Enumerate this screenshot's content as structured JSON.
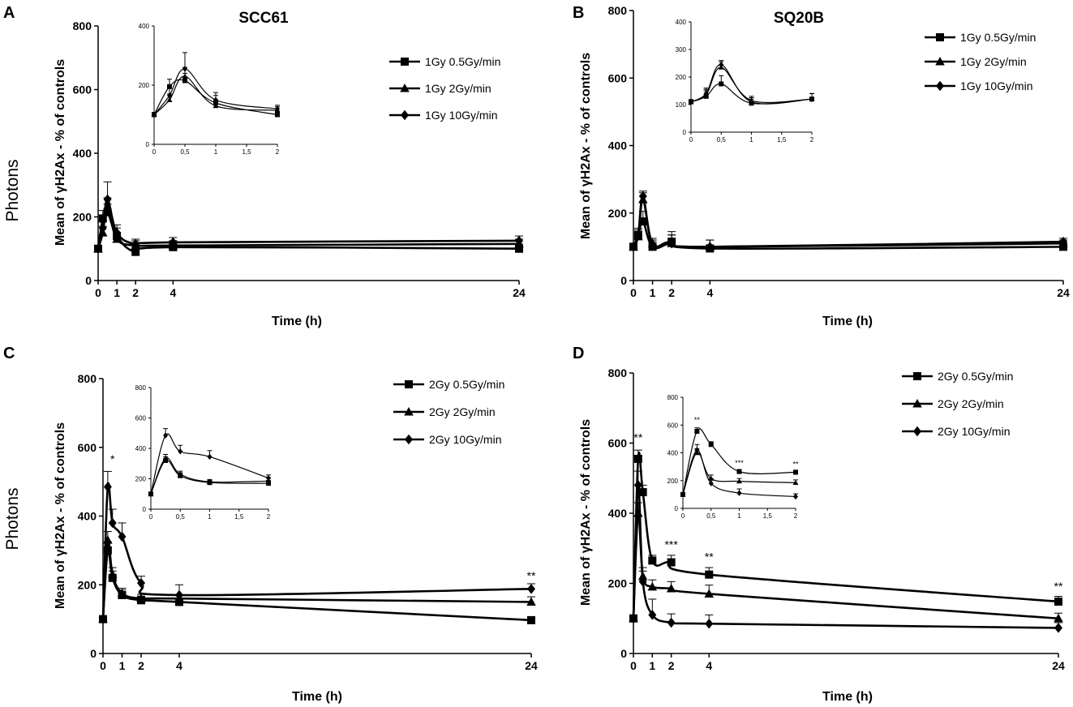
{
  "chart_data": [
    {
      "id": "A",
      "panel_label": "A",
      "type": "line",
      "title": "SCC61",
      "side_label": "Photons",
      "xlabel": "Time (h)",
      "ylabel": "Mean of γH2Ax - % of controls",
      "ylim": [
        0,
        800
      ],
      "yticks": [
        0,
        200,
        400,
        600,
        800
      ],
      "xticks": [
        0,
        1,
        2,
        4,
        24
      ],
      "legend_position": "top-right",
      "annotations": [],
      "series": [
        {
          "name": "1Gy 0.5Gy/min",
          "marker": "square",
          "x": [
            0,
            0.25,
            0.5,
            1,
            2,
            4,
            24
          ],
          "y": [
            100,
            195,
            215,
            140,
            90,
            105,
            100
          ],
          "err": [
            10,
            25,
            25,
            25,
            15,
            20,
            15
          ]
        },
        {
          "name": "1Gy 2Gy/min",
          "marker": "triangle",
          "x": [
            0,
            0.25,
            0.5,
            1,
            2,
            4,
            24
          ],
          "y": [
            100,
            150,
            230,
            130,
            110,
            110,
            115
          ],
          "err": [
            10,
            20,
            30,
            20,
            15,
            15,
            15
          ]
        },
        {
          "name": "1Gy 10Gy/min",
          "marker": "diamond",
          "x": [
            0,
            0.25,
            0.5,
            1,
            2,
            4,
            24
          ],
          "y": [
            100,
            165,
            255,
            150,
            115,
            120,
            125
          ],
          "err": [
            10,
            25,
            55,
            25,
            15,
            15,
            15
          ]
        }
      ],
      "inset": {
        "xlim": [
          0,
          2
        ],
        "ylim": [
          0,
          400
        ],
        "xticks": [
          0,
          0.5,
          1,
          1.5,
          2
        ],
        "xticklabels": [
          "0",
          "0,5",
          "1",
          "1,5",
          "2"
        ],
        "yticks": [
          0,
          200,
          400
        ],
        "annotations": [],
        "series": [
          {
            "name": "1Gy 0.5Gy/min",
            "marker": "square",
            "x": [
              0,
              0.25,
              0.5,
              1,
              2
            ],
            "y": [
              100,
              195,
              215,
              140,
              100
            ],
            "err": [
              8,
              25,
              25,
              25,
              12
            ]
          },
          {
            "name": "1Gy 2Gy/min",
            "marker": "triangle",
            "x": [
              0,
              0.25,
              0.5,
              1,
              2
            ],
            "y": [
              100,
              150,
              230,
              130,
              115
            ],
            "err": [
              8,
              20,
              30,
              20,
              12
            ]
          },
          {
            "name": "1Gy 10Gy/min",
            "marker": "diamond",
            "x": [
              0,
              0.25,
              0.5,
              1,
              2
            ],
            "y": [
              100,
              165,
              255,
              150,
              120
            ],
            "err": [
              8,
              25,
              55,
              25,
              12
            ]
          }
        ]
      }
    },
    {
      "id": "B",
      "panel_label": "B",
      "type": "line",
      "title": "SQ20B",
      "xlabel": "Time (h)",
      "ylabel": "Mean of γH2Ax - % of controls",
      "ylim": [
        0,
        800
      ],
      "yticks": [
        0,
        200,
        400,
        600,
        800
      ],
      "xticks": [
        0,
        1,
        2,
        4,
        24
      ],
      "legend_position": "top-right",
      "annotations": [],
      "series": [
        {
          "name": "1Gy 0.5Gy/min",
          "marker": "square",
          "x": [
            0,
            0.25,
            0.5,
            1,
            2,
            4,
            24
          ],
          "y": [
            100,
            135,
            175,
            100,
            115,
            95,
            100
          ],
          "err": [
            8,
            20,
            30,
            15,
            30,
            25,
            10
          ]
        },
        {
          "name": "1Gy 2Gy/min",
          "marker": "triangle",
          "x": [
            0,
            0.25,
            0.5,
            1,
            2,
            4,
            24
          ],
          "y": [
            100,
            130,
            240,
            110,
            110,
            100,
            110
          ],
          "err": [
            8,
            20,
            20,
            15,
            25,
            20,
            10
          ]
        },
        {
          "name": "1Gy 10Gy/min",
          "marker": "diamond",
          "x": [
            0,
            0.25,
            0.5,
            1,
            2,
            4,
            24
          ],
          "y": [
            100,
            135,
            250,
            105,
            110,
            100,
            115
          ],
          "err": [
            8,
            20,
            15,
            15,
            25,
            20,
            10
          ]
        }
      ],
      "inset": {
        "xlim": [
          0,
          2
        ],
        "ylim": [
          0,
          400
        ],
        "xticks": [
          0,
          0.5,
          1,
          1.5,
          2
        ],
        "xticklabels": [
          "0",
          "0,5",
          "1",
          "1,5",
          "2"
        ],
        "yticks": [
          0,
          100,
          200,
          300,
          400
        ],
        "annotations": [],
        "series": [
          {
            "name": "1Gy 0.5Gy/min",
            "marker": "square",
            "x": [
              0,
              0.25,
              0.5,
              1,
              2
            ],
            "y": [
              110,
              130,
              175,
              105,
              120
            ],
            "err": [
              8,
              20,
              30,
              15,
              20
            ]
          },
          {
            "name": "1Gy 2Gy/min",
            "marker": "triangle",
            "x": [
              0,
              0.25,
              0.5,
              1,
              2
            ],
            "y": [
              110,
              135,
              235,
              115,
              120
            ],
            "err": [
              8,
              20,
              20,
              15,
              20
            ]
          },
          {
            "name": "1Gy 10Gy/min",
            "marker": "diamond",
            "x": [
              0,
              0.25,
              0.5,
              1,
              2
            ],
            "y": [
              110,
              140,
              245,
              110,
              120
            ],
            "err": [
              8,
              20,
              15,
              15,
              20
            ]
          }
        ]
      }
    },
    {
      "id": "C",
      "panel_label": "C",
      "type": "line",
      "title": "",
      "side_label": "Photons",
      "xlabel": "Time (h)",
      "ylabel": "Mean of γH2Ax - % of controls",
      "ylim": [
        0,
        800
      ],
      "yticks": [
        0,
        200,
        400,
        600,
        800
      ],
      "xticks": [
        0,
        1,
        2,
        4,
        24
      ],
      "legend_position": "top-right",
      "annotations": [
        {
          "text": "*",
          "x": 0.5,
          "y": 555
        },
        {
          "text": "**",
          "x": 24,
          "y": 215
        }
      ],
      "series": [
        {
          "name": "2Gy 0.5Gy/min",
          "marker": "square",
          "x": [
            0,
            0.25,
            0.5,
            1,
            2,
            4,
            24
          ],
          "y": [
            100,
            300,
            220,
            170,
            155,
            150,
            97
          ],
          "err": [
            0,
            25,
            20,
            15,
            12,
            10,
            8
          ]
        },
        {
          "name": "2Gy 2Gy/min",
          "marker": "triangle",
          "x": [
            0,
            0.25,
            0.5,
            1,
            2,
            4,
            24
          ],
          "y": [
            100,
            330,
            230,
            175,
            160,
            160,
            150
          ],
          "err": [
            0,
            25,
            20,
            15,
            12,
            10,
            15
          ]
        },
        {
          "name": "2Gy 10Gy/min",
          "marker": "diamond",
          "x": [
            0,
            0.25,
            0.5,
            1,
            2,
            4,
            24
          ],
          "y": [
            100,
            485,
            380,
            340,
            205,
            170,
            188
          ],
          "err": [
            0,
            45,
            40,
            40,
            20,
            30,
            15
          ]
        }
      ],
      "inset": {
        "xlim": [
          0,
          2
        ],
        "ylim": [
          0,
          800
        ],
        "xticks": [
          0,
          0.5,
          1,
          1.5,
          2
        ],
        "xticklabels": [
          "0",
          "0,5",
          "1",
          "1,5",
          "2"
        ],
        "yticks": [
          0,
          200,
          400,
          600,
          800
        ],
        "annotations": [],
        "series": [
          {
            "name": "2Gy 0.5Gy/min",
            "marker": "square",
            "x": [
              0,
              0.25,
              0.5,
              1,
              2
            ],
            "y": [
              100,
              320,
              220,
              175,
              170
            ],
            "err": [
              0,
              25,
              20,
              15,
              20
            ]
          },
          {
            "name": "2Gy 2Gy/min",
            "marker": "triangle",
            "x": [
              0,
              0.25,
              0.5,
              1,
              2
            ],
            "y": [
              100,
              335,
              230,
              180,
              185
            ],
            "err": [
              0,
              25,
              20,
              15,
              20
            ]
          },
          {
            "name": "2Gy 10Gy/min",
            "marker": "diamond",
            "x": [
              0,
              0.25,
              0.5,
              1,
              2
            ],
            "y": [
              100,
              485,
              380,
              345,
              205
            ],
            "err": [
              0,
              45,
              40,
              40,
              20
            ]
          }
        ]
      }
    },
    {
      "id": "D",
      "panel_label": "D",
      "type": "line",
      "title": "",
      "xlabel": "Time (h)",
      "ylabel": "Mean of γH2Ax - % of controls",
      "ylim": [
        0,
        800
      ],
      "yticks": [
        0,
        200,
        400,
        600,
        800
      ],
      "xticks": [
        0,
        1,
        2,
        4,
        24
      ],
      "legend_position": "top-right",
      "annotations": [
        {
          "text": "**",
          "x": 0.25,
          "y": 605
        },
        {
          "text": "***",
          "x": 2,
          "y": 300
        },
        {
          "text": "**",
          "x": 4,
          "y": 265
        },
        {
          "text": "**",
          "x": 24,
          "y": 180
        }
      ],
      "series": [
        {
          "name": "2Gy 0.5Gy/min",
          "marker": "square",
          "x": [
            0,
            0.25,
            0.5,
            1,
            2,
            4,
            24
          ],
          "y": [
            100,
            555,
            460,
            265,
            260,
            225,
            148
          ],
          "err": [
            0,
            25,
            20,
            15,
            20,
            20,
            15
          ]
        },
        {
          "name": "2Gy 2Gy/min",
          "marker": "triangle",
          "x": [
            0,
            0.25,
            0.5,
            1,
            2,
            4,
            24
          ],
          "y": [
            100,
            400,
            220,
            190,
            185,
            170,
            100
          ],
          "err": [
            0,
            30,
            25,
            20,
            20,
            25,
            15
          ]
        },
        {
          "name": "2Gy 10Gy/min",
          "marker": "diamond",
          "x": [
            0,
            0.25,
            0.5,
            1,
            2,
            4,
            24
          ],
          "y": [
            100,
            480,
            205,
            110,
            88,
            85,
            73
          ],
          "err": [
            0,
            40,
            30,
            45,
            25,
            25,
            15
          ]
        }
      ],
      "inset": {
        "xlim": [
          0,
          2
        ],
        "ylim": [
          0,
          800
        ],
        "xticks": [
          0,
          0.5,
          1,
          1.5,
          2
        ],
        "xticklabels": [
          "0",
          "0,5",
          "1",
          "1,5",
          "2"
        ],
        "yticks": [
          0,
          200,
          400,
          600,
          800
        ],
        "annotations": [
          {
            "text": "**",
            "x": 0.25,
            "y": 620
          },
          {
            "text": "***",
            "x": 1,
            "y": 310
          },
          {
            "text": "**",
            "x": 2,
            "y": 300
          }
        ],
        "series": [
          {
            "name": "2Gy 0.5Gy/min",
            "marker": "square",
            "x": [
              0,
              0.25,
              0.5,
              1,
              2
            ],
            "y": [
              100,
              555,
              460,
              265,
              260
            ],
            "err": [
              0,
              25,
              20,
              15,
              15
            ]
          },
          {
            "name": "2Gy 2Gy/min",
            "marker": "triangle",
            "x": [
              0,
              0.25,
              0.5,
              1,
              2
            ],
            "y": [
              100,
              400,
              215,
              195,
              185
            ],
            "err": [
              0,
              30,
              25,
              20,
              20
            ]
          },
          {
            "name": "2Gy 10Gy/min",
            "marker": "diamond",
            "x": [
              0,
              0.25,
              0.5,
              1,
              2
            ],
            "y": [
              100,
              420,
              180,
              110,
              85
            ],
            "err": [
              0,
              40,
              35,
              30,
              20
            ]
          }
        ]
      }
    }
  ]
}
